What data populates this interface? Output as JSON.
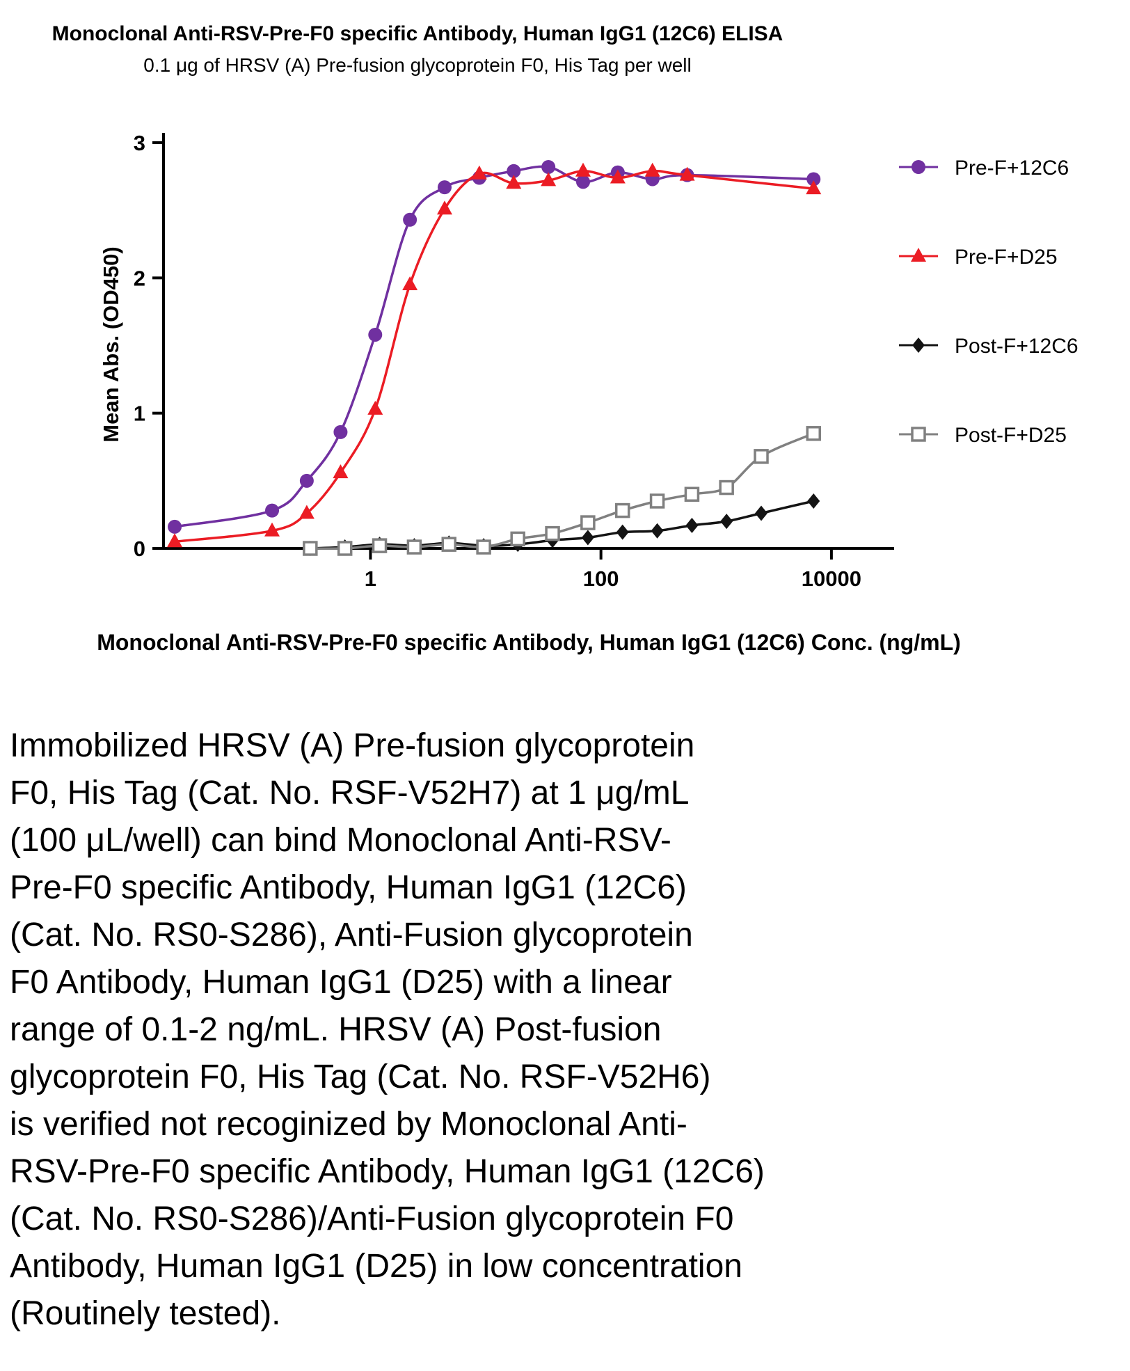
{
  "chart_data": {
    "type": "scatter-line",
    "title": "Monoclonal Anti-RSV-Pre-F0 specific Antibody, Human IgG1 (12C6) ELISA",
    "subtitle": "0.1 μg of HRSV (A) Pre-fusion glycoprotein F0, His Tag per well",
    "xlabel": "Monoclonal Anti-RSV-Pre-F0 specific Antibody, Human IgG1 (12C6) Conc. (ng/mL)",
    "ylabel": "Mean Abs. (OD450)",
    "x_scale": "log10",
    "xlim": [
      0.016,
      35000
    ],
    "ylim": [
      0,
      3
    ],
    "x_ticks": [
      1,
      100,
      10000
    ],
    "y_ticks": [
      0,
      1,
      2,
      3
    ],
    "grid": false,
    "legend_position": "right",
    "series": [
      {
        "name": "Pre-F+12C6",
        "marker": "circle",
        "color": "#7030A0",
        "x": [
          0.02,
          0.14,
          0.28,
          0.55,
          1.1,
          2.2,
          4.4,
          8.8,
          17.5,
          35,
          70,
          140,
          280,
          560,
          7000
        ],
        "y": [
          0.16,
          0.28,
          0.5,
          0.86,
          1.58,
          2.43,
          2.67,
          2.74,
          2.79,
          2.82,
          2.71,
          2.78,
          2.73,
          2.76,
          2.73
        ]
      },
      {
        "name": "Pre-F+D25",
        "marker": "triangle",
        "color": "#EB1C24",
        "x": [
          0.02,
          0.14,
          0.28,
          0.55,
          1.1,
          2.2,
          4.4,
          8.8,
          17.5,
          35,
          70,
          140,
          280,
          560,
          7000
        ],
        "y": [
          0.05,
          0.13,
          0.26,
          0.56,
          1.03,
          1.95,
          2.51,
          2.77,
          2.7,
          2.72,
          2.79,
          2.74,
          2.79,
          2.76,
          2.66
        ]
      },
      {
        "name": "Post-F+12C6",
        "marker": "diamond",
        "color": "#141414",
        "x": [
          0.3,
          0.6,
          1.2,
          2.4,
          4.8,
          9.6,
          19,
          38,
          77,
          154,
          308,
          616,
          1230,
          2460,
          7000
        ],
        "y": [
          0.0,
          0.01,
          0.03,
          0.02,
          0.04,
          0.02,
          0.03,
          0.06,
          0.08,
          0.12,
          0.13,
          0.17,
          0.2,
          0.26,
          0.35
        ]
      },
      {
        "name": "Post-F+D25",
        "marker": "square-open",
        "color": "#808080",
        "x": [
          0.3,
          0.6,
          1.2,
          2.4,
          4.8,
          9.6,
          19,
          38,
          77,
          154,
          308,
          616,
          1230,
          2460,
          7000
        ],
        "y": [
          0.0,
          0.0,
          0.02,
          0.01,
          0.03,
          0.01,
          0.07,
          0.11,
          0.19,
          0.28,
          0.35,
          0.4,
          0.45,
          0.68,
          0.85
        ]
      }
    ]
  },
  "description": "Immobilized HRSV (A) Pre-fusion glycoprotein\nF0, His Tag (Cat. No. RSF-V52H7) at 1 μg/mL\n(100 μL/well) can bind Monoclonal Anti-RSV-\nPre-F0 specific Antibody, Human IgG1 (12C6)\n(Cat. No. RS0-S286), Anti-Fusion glycoprotein\nF0 Antibody, Human IgG1 (D25) with a linear\nrange of 0.1-2 ng/mL. HRSV (A) Post-fusion\nglycoprotein F0, His Tag (Cat. No. RSF-V52H6)\nis verified not recoginized by Monoclonal Anti-\nRSV-Pre-F0 specific Antibody, Human IgG1 (12C6)\n(Cat. No. RS0-S286)/Anti-Fusion glycoprotein F0\nAntibody, Human IgG1 (D25) in low concentration\n(Routinely tested)."
}
